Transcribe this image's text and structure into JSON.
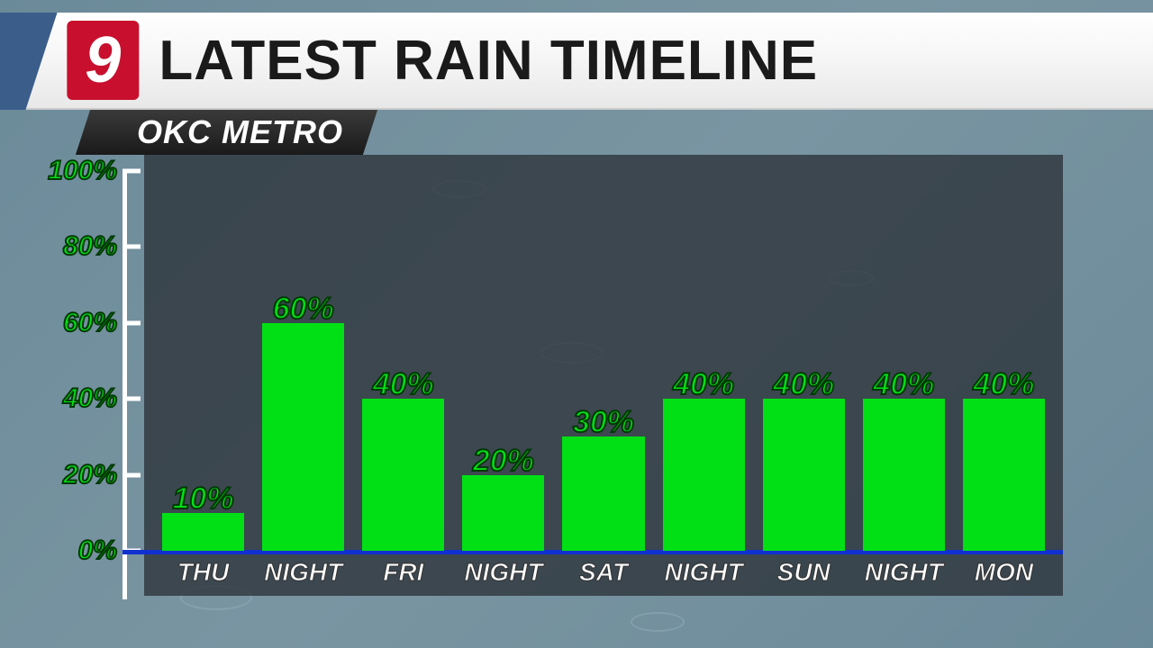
{
  "header": {
    "logo_text": "9",
    "title": "LATEST RAIN TIMELINE",
    "subtitle": "OKC METRO"
  },
  "chart": {
    "type": "bar",
    "ylim": [
      0,
      100
    ],
    "ytick_step": 20,
    "y_unit": "%",
    "bar_color": "#00e015",
    "bar_text_color": "#00e015",
    "bar_text_stroke": "#003805",
    "axis_color_y": "#ffffff",
    "axis_color_x": "#1030d0",
    "chart_bg": "rgba(40,45,52,0.75)",
    "page_bg": "#6b8a99",
    "label_fontsize": 30,
    "value_fontsize": 34,
    "xlabel_fontsize": 28,
    "y_ticks": [
      {
        "value": 0,
        "label": "0%"
      },
      {
        "value": 20,
        "label": "20%"
      },
      {
        "value": 40,
        "label": "40%"
      },
      {
        "value": 60,
        "label": "60%"
      },
      {
        "value": 80,
        "label": "80%"
      },
      {
        "value": 100,
        "label": "100%"
      }
    ],
    "bars": [
      {
        "label": "THU",
        "value": 10,
        "display": "10%"
      },
      {
        "label": "NIGHT",
        "value": 60,
        "display": "60%"
      },
      {
        "label": "FRI",
        "value": 40,
        "display": "40%"
      },
      {
        "label": "NIGHT",
        "value": 20,
        "display": "20%"
      },
      {
        "label": "SAT",
        "value": 30,
        "display": "30%"
      },
      {
        "label": "NIGHT",
        "value": 40,
        "display": "40%"
      },
      {
        "label": "SUN",
        "value": 40,
        "display": "40%"
      },
      {
        "label": "NIGHT",
        "value": 40,
        "display": "40%"
      },
      {
        "label": "MON",
        "value": 40,
        "display": "40%"
      }
    ]
  }
}
